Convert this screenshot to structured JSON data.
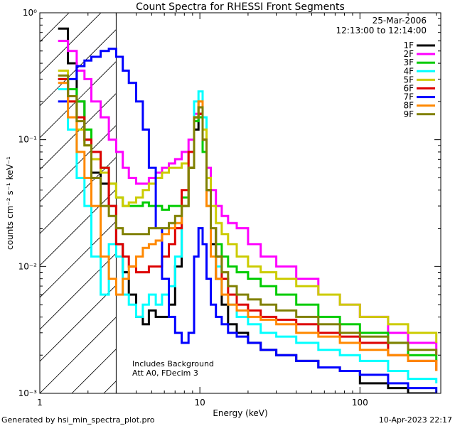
{
  "chart_data": {
    "type": "line",
    "title": "Count Spectra for RHESSI Front Segments",
    "xlabel": "Energy (keV)",
    "ylabel": "counts cm⁻² s⁻¹ keV⁻¹",
    "xscale": "log",
    "yscale": "log",
    "xlim": [
      1.0,
      320.0
    ],
    "ylim": [
      0.001,
      1.0
    ],
    "x_tick_labels": [
      "1",
      "10",
      "100"
    ],
    "y_tick_labels": [
      "10⁻³",
      "10⁻²",
      "10⁻¹",
      "10⁰"
    ],
    "hatch_region_energy": [
      1.0,
      3.0
    ],
    "date": "25-Mar-2006",
    "time_range": "12:13:00 to 12:14:00",
    "notes": [
      "Includes Background",
      "Att A0, FDecim 3"
    ],
    "footer_left": "Generated by hsi_min_spectra_plot.pro",
    "footer_right": "10-Apr-2023 22:17",
    "legend_position": "top-right",
    "series": [
      {
        "name": "1F",
        "color": "#000000",
        "x": [
          1.3,
          1.5,
          1.7,
          1.9,
          2.1,
          2.4,
          2.7,
          3.0,
          3.3,
          3.6,
          4.0,
          4.4,
          4.8,
          5.3,
          5.8,
          6.4,
          7.0,
          7.7,
          8.5,
          9.2,
          9.8,
          10.4,
          11.0,
          11.7,
          12.6,
          13.7,
          15.0,
          17.0,
          20.0,
          24.0,
          30.0,
          40.0,
          55.0,
          75.0,
          100.0,
          150.0,
          200.0,
          300.0
        ],
        "y": [
          0.75,
          0.4,
          0.2,
          0.1,
          0.055,
          0.045,
          0.03,
          0.015,
          0.009,
          0.006,
          0.004,
          0.0035,
          0.0045,
          0.004,
          0.004,
          0.005,
          0.01,
          0.03,
          0.06,
          0.12,
          0.16,
          0.1,
          0.04,
          0.015,
          0.008,
          0.005,
          0.0035,
          0.003,
          0.0025,
          0.0022,
          0.002,
          0.0018,
          0.0016,
          0.0015,
          0.0012,
          0.0011,
          0.001,
          0.001
        ]
      },
      {
        "name": "2F",
        "color": "#ff00ff",
        "x": [
          1.3,
          1.5,
          1.7,
          1.9,
          2.1,
          2.4,
          2.7,
          3.0,
          3.3,
          3.6,
          4.0,
          4.4,
          4.8,
          5.3,
          5.8,
          6.4,
          7.0,
          7.7,
          8.5,
          9.2,
          9.8,
          10.4,
          11.0,
          11.7,
          12.6,
          13.7,
          15.0,
          17.0,
          20.0,
          24.0,
          30.0,
          40.0,
          55.0,
          75.0,
          100.0,
          150.0,
          200.0,
          300.0
        ],
        "y": [
          0.6,
          0.5,
          0.35,
          0.3,
          0.2,
          0.15,
          0.1,
          0.08,
          0.06,
          0.05,
          0.045,
          0.045,
          0.05,
          0.055,
          0.06,
          0.065,
          0.07,
          0.08,
          0.1,
          0.16,
          0.18,
          0.12,
          0.06,
          0.04,
          0.03,
          0.025,
          0.022,
          0.02,
          0.015,
          0.012,
          0.01,
          0.008,
          0.006,
          0.005,
          0.004,
          0.003,
          0.0025,
          0.002
        ]
      },
      {
        "name": "3F",
        "color": "#00cc00",
        "x": [
          1.3,
          1.5,
          1.7,
          1.9,
          2.1,
          2.4,
          2.7,
          3.0,
          3.3,
          3.6,
          4.0,
          4.4,
          4.8,
          5.3,
          5.8,
          6.4,
          7.0,
          7.7,
          8.5,
          9.2,
          9.8,
          10.4,
          11.0,
          11.7,
          12.6,
          13.7,
          15.0,
          17.0,
          20.0,
          24.0,
          30.0,
          40.0,
          55.0,
          75.0,
          100.0,
          150.0,
          200.0,
          300.0
        ],
        "y": [
          0.3,
          0.25,
          0.2,
          0.12,
          0.08,
          0.06,
          0.045,
          0.035,
          0.03,
          0.03,
          0.03,
          0.032,
          0.03,
          0.03,
          0.028,
          0.03,
          0.03,
          0.035,
          0.06,
          0.14,
          0.15,
          0.08,
          0.03,
          0.02,
          0.015,
          0.012,
          0.01,
          0.009,
          0.008,
          0.007,
          0.006,
          0.005,
          0.004,
          0.0035,
          0.003,
          0.0025,
          0.002,
          0.0018
        ]
      },
      {
        "name": "4F",
        "color": "#00ffff",
        "x": [
          1.3,
          1.5,
          1.7,
          1.9,
          2.1,
          2.4,
          2.7,
          3.0,
          3.3,
          3.6,
          4.0,
          4.4,
          4.8,
          5.3,
          5.8,
          6.4,
          7.0,
          7.7,
          8.5,
          9.2,
          9.8,
          10.4,
          11.0,
          11.7,
          12.6,
          13.7,
          15.0,
          17.0,
          20.0,
          24.0,
          30.0,
          40.0,
          55.0,
          75.0,
          100.0,
          150.0,
          200.0,
          300.0
        ],
        "y": [
          0.25,
          0.12,
          0.05,
          0.03,
          0.012,
          0.006,
          0.015,
          0.012,
          0.006,
          0.005,
          0.004,
          0.005,
          0.006,
          0.005,
          0.006,
          0.007,
          0.012,
          0.03,
          0.08,
          0.2,
          0.24,
          0.15,
          0.05,
          0.02,
          0.01,
          0.006,
          0.005,
          0.004,
          0.0035,
          0.003,
          0.0028,
          0.0025,
          0.0022,
          0.002,
          0.0018,
          0.0015,
          0.0013,
          0.0012
        ]
      },
      {
        "name": "5F",
        "color": "#cccc00",
        "x": [
          1.3,
          1.5,
          1.7,
          1.9,
          2.1,
          2.4,
          2.7,
          3.0,
          3.3,
          3.6,
          4.0,
          4.4,
          4.8,
          5.3,
          5.8,
          6.4,
          7.0,
          7.7,
          8.5,
          9.2,
          9.8,
          10.4,
          11.0,
          11.7,
          12.6,
          13.7,
          15.0,
          17.0,
          20.0,
          24.0,
          30.0,
          40.0,
          55.0,
          75.0,
          100.0,
          150.0,
          200.0,
          300.0
        ],
        "y": [
          0.35,
          0.2,
          0.12,
          0.09,
          0.07,
          0.055,
          0.045,
          0.035,
          0.03,
          0.032,
          0.035,
          0.04,
          0.045,
          0.05,
          0.055,
          0.06,
          0.06,
          0.065,
          0.08,
          0.15,
          0.2,
          0.12,
          0.05,
          0.03,
          0.022,
          0.018,
          0.015,
          0.012,
          0.01,
          0.009,
          0.008,
          0.007,
          0.006,
          0.005,
          0.004,
          0.0035,
          0.003,
          0.0025
        ]
      },
      {
        "name": "6F",
        "color": "#dd0000",
        "x": [
          1.3,
          1.5,
          1.7,
          1.9,
          2.1,
          2.4,
          2.7,
          3.0,
          3.3,
          3.6,
          4.0,
          4.4,
          4.8,
          5.3,
          5.8,
          6.4,
          7.0,
          7.7,
          8.5,
          9.2,
          9.8,
          10.4,
          11.0,
          11.7,
          12.6,
          13.7,
          15.0,
          17.0,
          20.0,
          24.0,
          30.0,
          40.0,
          55.0,
          75.0,
          100.0,
          150.0,
          200.0,
          300.0
        ],
        "y": [
          0.3,
          0.2,
          0.15,
          0.1,
          0.08,
          0.06,
          0.03,
          0.015,
          0.012,
          0.01,
          0.009,
          0.009,
          0.01,
          0.01,
          0.012,
          0.015,
          0.02,
          0.04,
          0.08,
          0.15,
          0.16,
          0.1,
          0.04,
          0.02,
          0.012,
          0.008,
          0.006,
          0.005,
          0.0045,
          0.004,
          0.0038,
          0.0035,
          0.003,
          0.0028,
          0.0025,
          0.002,
          0.0018,
          0.0015
        ]
      },
      {
        "name": "7F",
        "color": "#0000ff",
        "x": [
          1.3,
          1.5,
          1.7,
          1.9,
          2.1,
          2.4,
          2.7,
          3.0,
          3.3,
          3.6,
          4.0,
          4.4,
          4.8,
          5.3,
          5.8,
          6.4,
          7.0,
          7.7,
          8.5,
          9.2,
          9.8,
          10.4,
          11.0,
          11.7,
          12.6,
          13.7,
          15.0,
          17.0,
          20.0,
          24.0,
          30.0,
          40.0,
          55.0,
          75.0,
          100.0,
          150.0,
          200.0,
          300.0
        ],
        "y": [
          0.2,
          0.3,
          0.38,
          0.42,
          0.45,
          0.5,
          0.52,
          0.45,
          0.35,
          0.28,
          0.2,
          0.12,
          0.06,
          0.02,
          0.008,
          0.004,
          0.003,
          0.0025,
          0.003,
          0.012,
          0.02,
          0.015,
          0.008,
          0.005,
          0.004,
          0.0035,
          0.003,
          0.0028,
          0.0025,
          0.0022,
          0.002,
          0.0018,
          0.0016,
          0.0015,
          0.0014,
          0.0012,
          0.0011,
          0.001
        ]
      },
      {
        "name": "8F",
        "color": "#ff8800",
        "x": [
          1.3,
          1.5,
          1.7,
          1.9,
          2.1,
          2.4,
          2.7,
          3.0,
          3.3,
          3.6,
          4.0,
          4.4,
          4.8,
          5.3,
          5.8,
          6.4,
          7.0,
          7.7,
          8.5,
          9.2,
          9.8,
          10.4,
          11.0,
          11.7,
          12.6,
          13.7,
          15.0,
          17.0,
          20.0,
          24.0,
          30.0,
          40.0,
          55.0,
          75.0,
          100.0,
          150.0,
          200.0,
          300.0
        ],
        "y": [
          0.28,
          0.15,
          0.08,
          0.05,
          0.03,
          0.012,
          0.008,
          0.006,
          0.008,
          0.01,
          0.012,
          0.014,
          0.015,
          0.016,
          0.018,
          0.02,
          0.022,
          0.03,
          0.06,
          0.15,
          0.2,
          0.1,
          0.03,
          0.012,
          0.008,
          0.006,
          0.005,
          0.0045,
          0.004,
          0.0038,
          0.0035,
          0.003,
          0.0028,
          0.0025,
          0.0022,
          0.002,
          0.0018,
          0.0015
        ]
      },
      {
        "name": "9F",
        "color": "#808000",
        "x": [
          1.3,
          1.5,
          1.7,
          1.9,
          2.1,
          2.4,
          2.7,
          3.0,
          3.3,
          3.6,
          4.0,
          4.4,
          4.8,
          5.3,
          5.8,
          6.4,
          7.0,
          7.7,
          8.5,
          9.2,
          9.8,
          10.4,
          11.0,
          11.7,
          12.6,
          13.7,
          15.0,
          17.0,
          20.0,
          24.0,
          30.0,
          40.0,
          55.0,
          75.0,
          100.0,
          150.0,
          200.0,
          300.0
        ],
        "y": [
          0.32,
          0.22,
          0.14,
          0.09,
          0.05,
          0.03,
          0.025,
          0.02,
          0.018,
          0.018,
          0.018,
          0.018,
          0.02,
          0.02,
          0.02,
          0.022,
          0.025,
          0.03,
          0.06,
          0.15,
          0.18,
          0.1,
          0.04,
          0.02,
          0.012,
          0.009,
          0.007,
          0.006,
          0.0055,
          0.005,
          0.0045,
          0.004,
          0.0035,
          0.003,
          0.0028,
          0.0025,
          0.0022,
          0.002
        ]
      }
    ]
  }
}
